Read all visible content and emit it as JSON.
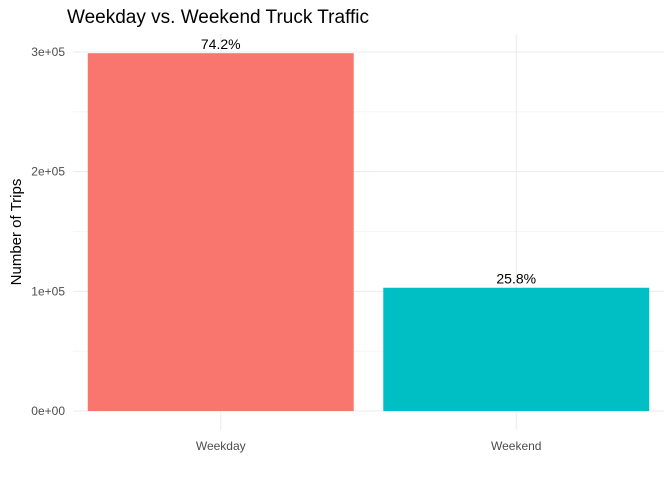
{
  "chart_data": {
    "type": "bar",
    "title": "Weekday vs. Weekend Truck Traffic",
    "xlabel": "",
    "ylabel": "Number of Trips",
    "categories": [
      "Weekday",
      "Weekend"
    ],
    "values": [
      299000,
      103000
    ],
    "data_labels": [
      "74.2%",
      "25.8%"
    ],
    "colors": [
      "#F8766D",
      "#00BFC4"
    ],
    "ylim": [
      0,
      315000
    ],
    "yticks": [
      0,
      100000,
      200000,
      300000
    ],
    "ytick_labels": [
      "0e+00",
      "1e+05",
      "2e+05",
      "3e+05"
    ],
    "minor_yticks": [
      50000,
      150000,
      250000
    ],
    "grid": true,
    "legend": "none"
  }
}
